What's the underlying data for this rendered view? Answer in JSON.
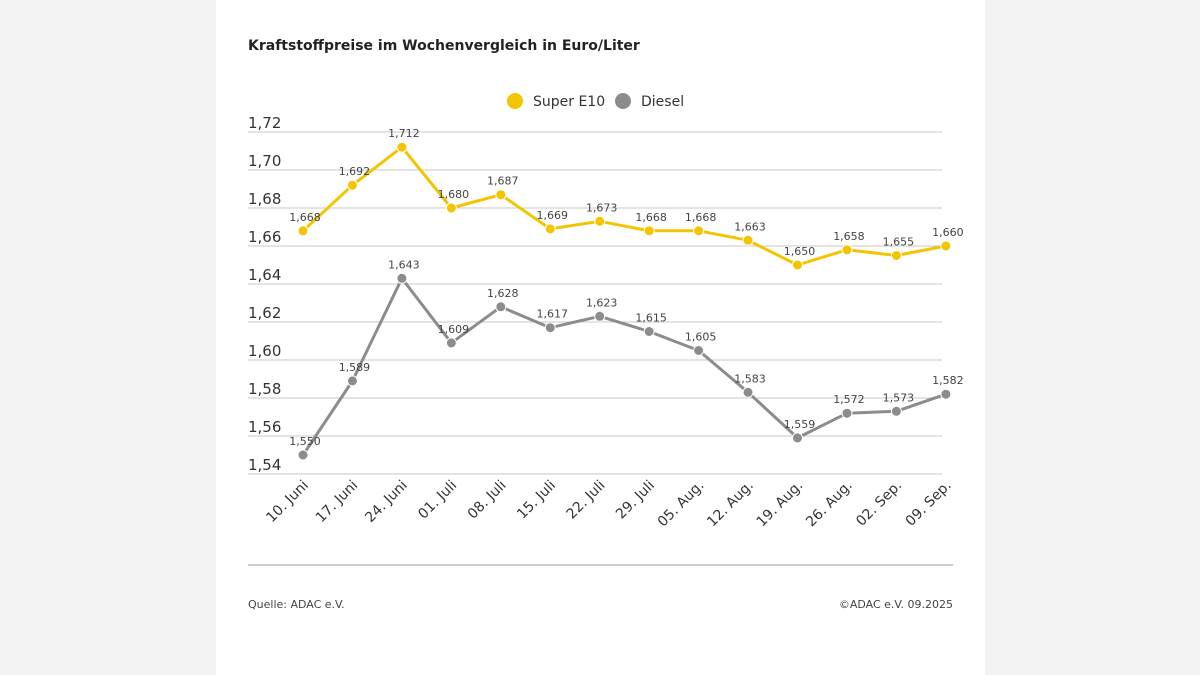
{
  "chart_data": {
    "type": "line",
    "title": "Kraftstoffpreise im Wochenvergleich in Euro/Liter",
    "categories": [
      "10. Juni",
      "17. Juni",
      "24. Juni",
      "01. Juli",
      "08. Juli",
      "15. Juli",
      "22. Juli",
      "29. Juli",
      "05. Aug.",
      "12. Aug.",
      "19. Aug.",
      "26. Aug.",
      "02. Sep.",
      "09. Sep."
    ],
    "series": [
      {
        "name": "Super E10",
        "color": "#f5c400",
        "values": [
          1.668,
          1.692,
          1.712,
          1.68,
          1.687,
          1.669,
          1.673,
          1.668,
          1.668,
          1.663,
          1.65,
          1.658,
          1.655,
          1.66
        ]
      },
      {
        "name": "Diesel",
        "color": "#8c8c8c",
        "values": [
          1.55,
          1.589,
          1.643,
          1.609,
          1.628,
          1.617,
          1.623,
          1.615,
          1.605,
          1.583,
          1.559,
          1.572,
          1.573,
          1.582
        ]
      }
    ],
    "yticks": [
      "1,54",
      "1,56",
      "1,58",
      "1,60",
      "1,62",
      "1,64",
      "1,66",
      "1,68",
      "1,70",
      "1,72"
    ],
    "ylim": [
      1.54,
      1.72
    ],
    "grid": true,
    "legend": "top-center",
    "xlabel": "",
    "ylabel": ""
  },
  "footer": {
    "source": "Quelle: ADAC e.V.",
    "copyright": "©ADAC e.V. 09.2025"
  }
}
